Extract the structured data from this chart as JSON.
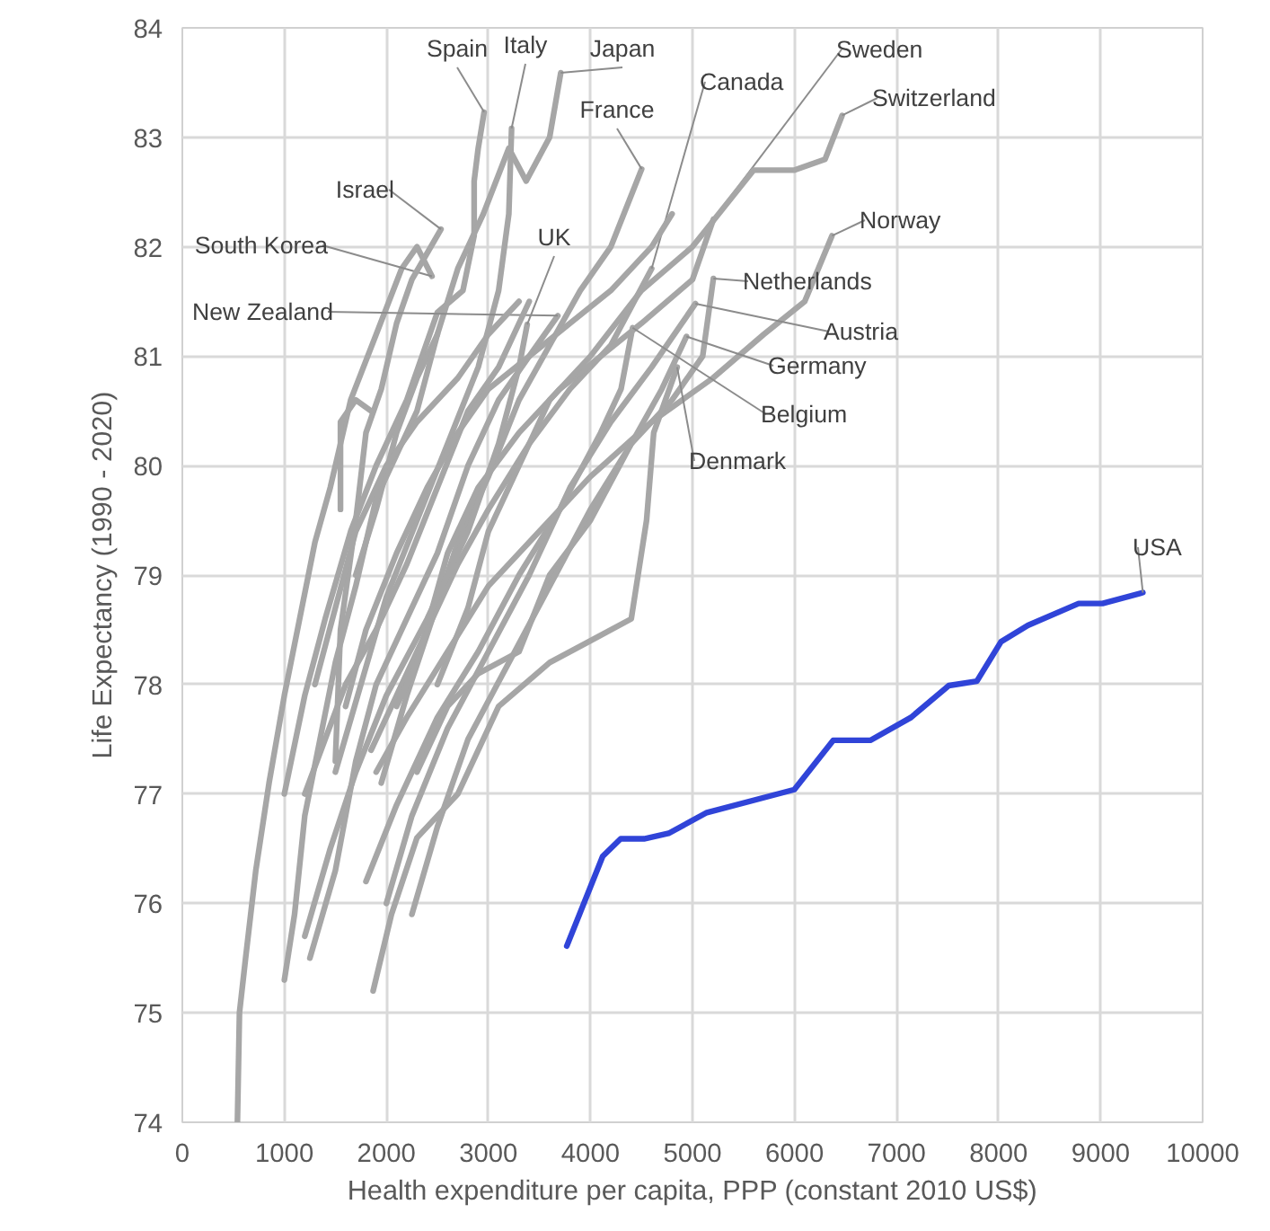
{
  "chart_data": {
    "type": "line",
    "xlabel": "Health expenditure per capita, PPP (constant 2010 US$)",
    "ylabel": "Life Expectancy (1990 - 2020)",
    "xlim": [
      0,
      10000
    ],
    "ylim": [
      74,
      84
    ],
    "xticks": [
      0,
      1000,
      2000,
      3000,
      4000,
      5000,
      6000,
      7000,
      8000,
      9000,
      10000
    ],
    "yticks": [
      74,
      75,
      76,
      77,
      78,
      79,
      80,
      81,
      82,
      83,
      84
    ],
    "grid": true,
    "marker": "none",
    "line_style": "solid",
    "series": [
      {
        "name": "South Korea",
        "color": "#a6a6a6",
        "x": [
          540,
          560,
          620,
          720,
          850,
          1000,
          1150,
          1300,
          1450,
          1650,
          1900,
          2150,
          2300,
          2447
        ],
        "values": [
          74.0,
          75.0,
          75.5,
          76.3,
          77.1,
          77.9,
          78.6,
          79.3,
          79.8,
          80.6,
          81.2,
          81.8,
          82.0,
          81.73
        ]
      },
      {
        "name": "Israel",
        "color": "#a6a6a6",
        "x": [
          1500,
          1550,
          1700,
          1800,
          1950,
          2100,
          2250,
          2535
        ],
        "values": [
          77.3,
          78.5,
          79.5,
          80.3,
          80.7,
          81.3,
          81.7,
          82.16
        ]
      },
      {
        "name": "Spain",
        "color": "#a6a6a6",
        "x": [
          1000,
          1200,
          1400,
          1650,
          1900,
          2200,
          2500,
          2750,
          2860,
          2860,
          2900,
          2958
        ],
        "values": [
          77.0,
          77.9,
          78.6,
          79.4,
          80.0,
          80.6,
          81.4,
          81.6,
          82.1,
          82.6,
          82.9,
          83.23
        ]
      },
      {
        "name": "Italy",
        "color": "#a6a6a6",
        "x": [
          1500,
          1750,
          2000,
          2300,
          2600,
          2900,
          3100,
          3200,
          3227
        ],
        "values": [
          77.2,
          78.0,
          78.8,
          79.5,
          80.2,
          80.9,
          81.6,
          82.3,
          83.08
        ]
      },
      {
        "name": "Japan",
        "color": "#a6a6a6",
        "x": [
          1700,
          1900,
          2100,
          2300,
          2500,
          2700,
          2950,
          3200,
          3370,
          3600,
          3709
        ],
        "values": [
          79.0,
          79.6,
          80.3,
          80.8,
          81.2,
          81.8,
          82.3,
          82.9,
          82.6,
          83.0,
          83.59
        ]
      },
      {
        "name": "France",
        "color": "#a6a6a6",
        "x": [
          1950,
          2200,
          2450,
          2700,
          3000,
          3300,
          3600,
          3900,
          4200,
          4502
        ],
        "values": [
          77.1,
          77.9,
          78.6,
          79.3,
          79.9,
          80.6,
          81.1,
          81.6,
          82.0,
          82.71
        ]
      },
      {
        "name": "Canada",
        "color": "#a6a6a6",
        "x": [
          1850,
          2100,
          2400,
          2700,
          3000,
          3400,
          3800,
          4200,
          4600
        ],
        "values": [
          77.4,
          77.9,
          78.5,
          79.1,
          79.6,
          80.2,
          80.7,
          81.1,
          81.8
        ]
      },
      {
        "name": "Sweden",
        "color": "#a6a6a6",
        "x": [
          2100,
          2300,
          2600,
          2900,
          3300,
          3700,
          4100,
          4500,
          5000,
          5205
        ],
        "values": [
          77.8,
          78.2,
          79.2,
          79.8,
          80.3,
          80.7,
          81.0,
          81.3,
          81.7,
          82.25
        ]
      },
      {
        "name": "Switzerland",
        "color": "#a6a6a6",
        "x": [
          2500,
          2800,
          3000,
          3300,
          3600,
          4000,
          4500,
          5000,
          5600,
          6000,
          6300,
          6467
        ],
        "values": [
          78.0,
          78.7,
          79.4,
          80.0,
          80.6,
          81.0,
          81.6,
          82.0,
          82.7,
          82.7,
          82.8,
          83.2
        ]
      },
      {
        "name": "Norway",
        "color": "#a6a6a6",
        "x": [
          1900,
          2200,
          2600,
          3000,
          3500,
          4000,
          4600,
          5200,
          5700,
          6100,
          6367
        ],
        "values": [
          77.2,
          77.7,
          78.3,
          78.9,
          79.4,
          79.9,
          80.4,
          80.8,
          81.2,
          81.5,
          82.1
        ]
      },
      {
        "name": "Netherlands",
        "color": "#a6a6a6",
        "x": [
          2300,
          2600,
          2900,
          3300,
          3600,
          4000,
          4400,
          4800,
          5100,
          5205
        ],
        "values": [
          77.2,
          77.8,
          78.1,
          78.3,
          79.0,
          79.5,
          80.2,
          80.6,
          81.0,
          81.71
        ]
      },
      {
        "name": "Austria",
        "color": "#a6a6a6",
        "x": [
          2000,
          2250,
          2600,
          3000,
          3400,
          3800,
          4200,
          4600,
          5029
        ],
        "values": [
          76.0,
          76.8,
          77.6,
          78.3,
          79.0,
          79.8,
          80.4,
          80.9,
          81.48
        ]
      },
      {
        "name": "Germany",
        "color": "#a6a6a6",
        "x": [
          2250,
          2500,
          2800,
          3200,
          3600,
          4000,
          4400,
          4700,
          4941
        ],
        "values": [
          75.9,
          76.7,
          77.5,
          78.2,
          78.9,
          79.6,
          80.2,
          80.7,
          81.18
        ]
      },
      {
        "name": "Belgium",
        "color": "#a6a6a6",
        "x": [
          1800,
          2100,
          2500,
          2900,
          3300,
          3700,
          4100,
          4300,
          4413
        ],
        "values": [
          76.2,
          76.9,
          77.7,
          78.3,
          79.0,
          79.6,
          80.3,
          80.7,
          81.26
        ]
      },
      {
        "name": "Denmark",
        "color": "#a6a6a6",
        "x": [
          1870,
          2050,
          2300,
          2700,
          3100,
          3600,
          4000,
          4400,
          4550,
          4620,
          4850
        ],
        "values": [
          75.2,
          75.9,
          76.6,
          77.0,
          77.8,
          78.2,
          78.4,
          78.6,
          79.5,
          80.3,
          80.9
        ]
      },
      {
        "name": "UK",
        "color": "#a6a6a6",
        "x": [
          1200,
          1450,
          1700,
          2000,
          2400,
          2800,
          3100,
          3300,
          3380
        ],
        "values": [
          75.7,
          76.5,
          77.2,
          77.9,
          78.6,
          79.4,
          80.2,
          80.9,
          81.29
        ]
      },
      {
        "name": "New Zealand",
        "color": "#a6a6a6",
        "x": [
          1250,
          1500,
          1700,
          1900,
          2200,
          2500,
          2800,
          3100,
          3400,
          3680
        ],
        "values": [
          75.5,
          76.3,
          77.3,
          78.0,
          78.6,
          79.2,
          80.0,
          80.6,
          81.0,
          81.37
        ]
      },
      {
        "color": "#a6a6a6",
        "x": [
          1000,
          1100,
          1200,
          1350,
          1500,
          1700,
          1900,
          2100,
          2300,
          2500
        ],
        "values": [
          75.3,
          75.9,
          76.8,
          77.5,
          78.2,
          78.9,
          79.7,
          80.1,
          80.5,
          81.2
        ]
      },
      {
        "color": "#a6a6a6",
        "x": [
          1300,
          1500,
          1700,
          2000,
          2300,
          2700,
          3000,
          3300
        ],
        "values": [
          78.0,
          78.7,
          79.4,
          80.0,
          80.4,
          80.8,
          81.2,
          81.5
        ]
      },
      {
        "color": "#a6a6a6",
        "x": [
          1200,
          1400,
          1600,
          1900,
          2200,
          2500,
          2800,
          3100,
          3400
        ],
        "values": [
          77.0,
          77.5,
          78.0,
          78.5,
          79.1,
          79.8,
          80.5,
          80.9,
          81.5
        ]
      },
      {
        "color": "#a6a6a6",
        "x": [
          1600,
          1800,
          2100,
          2400,
          2700,
          3000,
          3400,
          3800,
          4200,
          4600,
          4800
        ],
        "values": [
          77.8,
          78.5,
          79.2,
          79.8,
          80.3,
          80.7,
          81.0,
          81.3,
          81.6,
          82.0,
          82.3
        ]
      },
      {
        "color": "#a6a6a6",
        "x": [
          1550,
          1550,
          1700,
          1850
        ],
        "values": [
          79.6,
          80.4,
          80.6,
          80.5
        ]
      },
      {
        "name": "USA",
        "color": "#3044d8",
        "x": [
          3768,
          4120,
          4296,
          4525,
          4766,
          5141,
          5998,
          6379,
          6743,
          7143,
          7512,
          7787,
          8023,
          8287,
          8785,
          9019,
          9414
        ],
        "values": [
          75.61,
          76.43,
          76.59,
          76.59,
          76.64,
          76.83,
          77.04,
          77.49,
          77.49,
          77.7,
          77.99,
          78.03,
          78.39,
          78.54,
          78.74,
          78.74,
          78.84
        ]
      }
    ]
  }
}
